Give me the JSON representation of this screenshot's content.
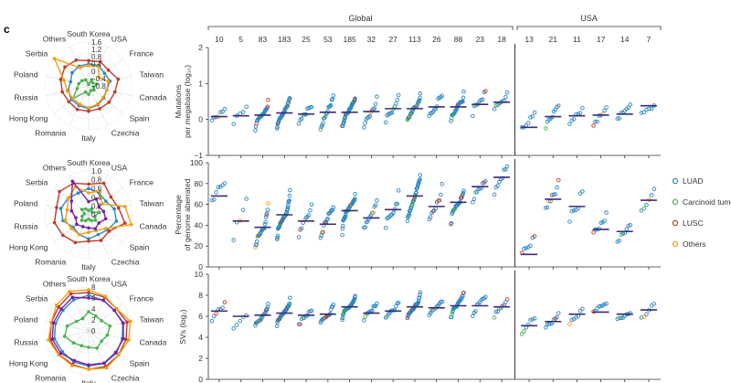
{
  "panel_letter": "c",
  "colors": {
    "LUAD": "#2e86c1",
    "Carcinoid tumours": "#4caf50",
    "LUSC": "#c0392b",
    "Others": "#f39c12",
    "median": "#3b2a7a"
  },
  "chart_data": [
    {
      "type": "radar",
      "axes": [
        "South Korea",
        "USA",
        "France",
        "Taiwan",
        "Canada",
        "Spain",
        "Czechia",
        "Italy",
        "Romania",
        "Hong Kong",
        "Russia",
        "Poland",
        "Serbia",
        "Others"
      ],
      "ticks": [
        "1.6",
        "1.2",
        "0.8",
        "0.4",
        "0",
        "−0.4",
        "−0.8"
      ],
      "rlim": [
        -1,
        1.6
      ],
      "series": [
        {
          "color": "#2e86c1",
          "values": [
            0.3,
            0.35,
            0.2,
            0.3,
            0.1,
            0.15,
            0.25,
            0.35,
            0.3,
            0.3,
            0.25,
            0.1,
            0.25,
            0.3
          ]
        },
        {
          "color": "#4caf50",
          "values": [
            -0.9,
            -0.6,
            -0.7,
            -0.5,
            -0.7,
            -0.6,
            -0.7,
            -0.5,
            -0.6,
            0.2,
            -0.3,
            -0.4,
            -0.5,
            -0.6
          ]
        },
        {
          "color": "#c0392b",
          "values": [
            0.5,
            0.6,
            0.5,
            0.8,
            0.6,
            0.55,
            0.5,
            0.5,
            0.55,
            0.5,
            0.6,
            0.7,
            0.8,
            0.7
          ]
        },
        {
          "color": "#f39c12",
          "values": [
            0.2,
            0.3,
            -0.2,
            0.2,
            0.1,
            0.1,
            0.2,
            0.3,
            0.2,
            0.2,
            0.3,
            0.5,
            1.6,
            0.2
          ]
        }
      ]
    },
    {
      "type": "radar",
      "axes": [
        "South Korea",
        "USA",
        "France",
        "Taiwan",
        "Canada",
        "Spain",
        "Czechia",
        "Italy",
        "Romania",
        "Hong Kong",
        "Russia",
        "Poland",
        "Serbia",
        "Others"
      ],
      "ticks": [
        "1.0",
        "0.8",
        "0.6",
        "0.4",
        "0.2",
        "0"
      ],
      "rlim": [
        0,
        1.0
      ],
      "series": [
        {
          "color": "#2e86c1",
          "values": [
            0.6,
            0.55,
            0.5,
            0.6,
            0.65,
            0.55,
            0.5,
            0.55,
            0.5,
            0.45,
            0.6,
            0.65,
            0.6,
            0.55
          ]
        },
        {
          "color": "#4caf50",
          "values": [
            0.1,
            0.15,
            0.1,
            0.25,
            0.15,
            0.2,
            0.15,
            0.1,
            0.15,
            0.2,
            0.15,
            0.1,
            0.2,
            0.15
          ]
        },
        {
          "color": "#c0392b",
          "values": [
            0.7,
            0.8,
            0.65,
            0.7,
            0.85,
            0.6,
            0.65,
            0.6,
            0.7,
            0.75,
            0.8,
            0.75,
            0.85,
            0.8
          ]
        },
        {
          "color": "#f39c12",
          "values": [
            0.5,
            0.6,
            0.4,
            0.85,
            1.0,
            0.5,
            0.4,
            0.4,
            0.5,
            0.5,
            0.55,
            0.5,
            0.6,
            0.7
          ]
        },
        {
          "color": "#7b1fa2",
          "values": [
            0.3,
            0.4,
            0.3,
            0.35,
            0.4,
            0.3,
            0.35,
            0.3,
            0.3,
            0.35,
            0.3,
            0.4,
            0.5,
            0.85
          ]
        }
      ]
    },
    {
      "type": "radar",
      "axes": [
        "South Korea",
        "USA",
        "France",
        "Taiwan",
        "Canada",
        "Spain",
        "Czechia",
        "Italy",
        "Romania",
        "Hong Kong",
        "Russia",
        "Poland",
        "Serbia",
        "Others"
      ],
      "ticks": [
        "8",
        "6",
        "4",
        "2",
        "0"
      ],
      "rlim": [
        0,
        8
      ],
      "series": [
        {
          "color": "#2e86c1",
          "values": [
            6.5,
            6.2,
            6.0,
            6.4,
            6.3,
            6.5,
            6.6,
            6.4,
            6.3,
            6.1,
            6.4,
            6.2,
            6.0,
            6.3
          ]
        },
        {
          "color": "#4caf50",
          "values": [
            3.5,
            3.0,
            3.0,
            4.0,
            3.5,
            3.0,
            3.5,
            3.0,
            3.0,
            3.5,
            4.5,
            4.0,
            2.8,
            2.5
          ]
        },
        {
          "color": "#c0392b",
          "values": [
            7.0,
            6.8,
            6.5,
            7.2,
            7.0,
            7.0,
            7.2,
            7.0,
            6.8,
            6.9,
            7.2,
            7.0,
            7.0,
            7.5
          ]
        },
        {
          "color": "#f39c12",
          "values": [
            7.5,
            7.0,
            6.5,
            7.8,
            7.5,
            7.0,
            7.5,
            7.0,
            7.0,
            7.0,
            7.5,
            7.0,
            7.5,
            8.0
          ]
        },
        {
          "color": "#7b1fa2",
          "values": [
            6.0,
            6.2,
            6.0,
            6.5,
            6.5,
            6.3,
            6.5,
            6.2,
            6.0,
            6.5,
            6.8,
            6.6,
            6.4,
            6.8
          ]
        }
      ]
    },
    {
      "type": "scatter",
      "groups": [
        "Global",
        "USA"
      ],
      "counts": {
        "Global": [
          "10",
          "5",
          "83",
          "183",
          "25",
          "53",
          "185",
          "32",
          "27",
          "113",
          "26",
          "88",
          "23",
          "18"
        ],
        "USA": [
          "13",
          "21",
          "11",
          "17",
          "14",
          "7"
        ]
      },
      "legend": {
        "position": "right",
        "entries": [
          "LUAD",
          "Carcinoid tumours",
          "LUSC",
          "Others"
        ]
      },
      "panels": [
        {
          "ylabel": [
            "Mutations",
            "per megabase (log₁₀)"
          ],
          "ylim": [
            -1,
            2
          ],
          "yticks": [
            "2",
            "1",
            "0",
            "−1"
          ],
          "yticks_values": [
            2,
            1,
            0,
            -1
          ],
          "medians": [
            0.08,
            0.1,
            0.12,
            0.18,
            0.15,
            0.2,
            0.2,
            0.22,
            0.3,
            0.3,
            0.35,
            0.35,
            0.42,
            0.48,
            -0.22,
            0.08,
            0.1,
            0.12,
            0.15,
            0.38
          ]
        },
        {
          "ylabel": [
            "Percentage",
            "of genome aberrated"
          ],
          "ylim": [
            0,
            100
          ],
          "yticks": [
            "100",
            "80",
            "60",
            "40",
            "20",
            "0"
          ],
          "yticks_values": [
            100,
            80,
            60,
            40,
            20,
            0
          ],
          "medians": [
            68,
            44,
            38,
            50,
            44,
            41,
            54,
            47,
            55,
            68,
            58,
            62,
            77,
            86,
            12,
            65,
            58,
            36,
            34,
            64
          ]
        },
        {
          "ylabel": [
            "SVs (log₂)"
          ],
          "ylim": [
            0,
            10
          ],
          "yticks": [
            "10",
            "8",
            "6",
            "4",
            "2",
            "0"
          ],
          "yticks_values": [
            10,
            8,
            6,
            4,
            2,
            0
          ],
          "medians": [
            6.5,
            6.0,
            6.1,
            6.3,
            6.1,
            6.2,
            6.9,
            6.3,
            6.5,
            6.9,
            6.8,
            7.0,
            7.0,
            6.9,
            5.1,
            5.5,
            6.2,
            6.4,
            6.2,
            6.6
          ]
        }
      ]
    }
  ]
}
